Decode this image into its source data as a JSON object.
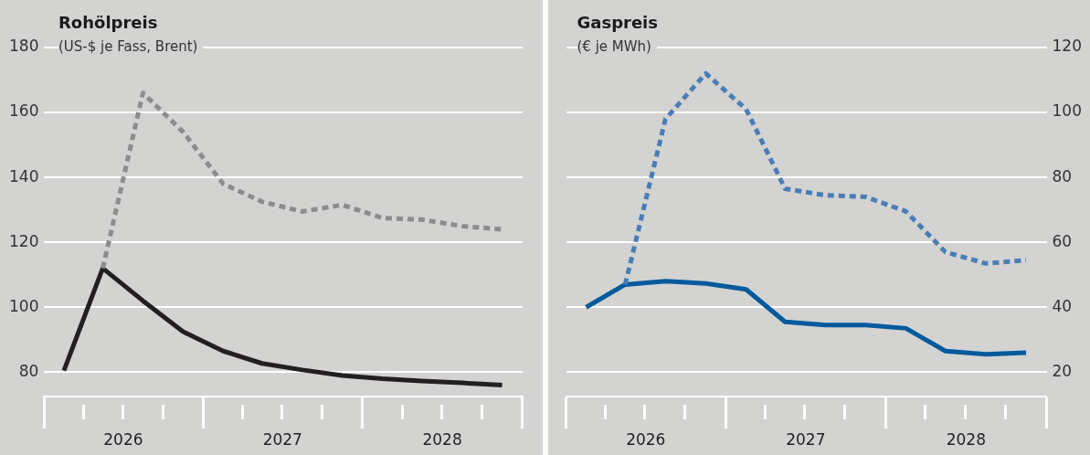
{
  "chart_data": [
    {
      "type": "line",
      "title": "Rohölpreis",
      "subtitle": "(US-$ je Fass, Brent)",
      "grid": "y",
      "x": [
        "2026-02-15",
        "2026-05-15",
        "2026-08-15",
        "2026-11-15",
        "2027-02-15",
        "2027-05-15",
        "2027-08-15",
        "2027-11-15",
        "2028-02-15",
        "2028-05-15",
        "2028-08-15",
        "2028-11-15"
      ],
      "xlim": [
        "2026-01-01",
        "2029-01-01"
      ],
      "xticks": [
        {
          "value": "2026-07-01",
          "label": "2026"
        },
        {
          "value": "2027-07-01",
          "label": "2027"
        },
        {
          "value": "2028-07-01",
          "label": "2028"
        }
      ],
      "ylim": [
        72.5,
        180
      ],
      "yticks": [
        80,
        100,
        120,
        140,
        160,
        180
      ],
      "series": [
        {
          "color": "#8c8c8c",
          "line_style": "dashed",
          "values": [
            null,
            112,
            166,
            154,
            138,
            132.5,
            129.5,
            131.5,
            127.5,
            127,
            125,
            124
          ]
        },
        {
          "color": "#231f20",
          "line_style": "solid",
          "values": [
            80.5,
            112,
            102,
            92.5,
            86.5,
            82.7,
            80.7,
            79,
            78,
            77.3,
            76.7,
            76
          ]
        }
      ]
    },
    {
      "type": "line",
      "title": "Gaspreis",
      "subtitle": "(€ je MWh)",
      "grid": "y",
      "x": [
        "2026-02-15",
        "2026-05-15",
        "2026-08-15",
        "2026-11-15",
        "2027-02-15",
        "2027-05-15",
        "2027-08-15",
        "2027-11-15",
        "2028-02-15",
        "2028-05-15",
        "2028-08-15",
        "2028-11-15"
      ],
      "xlim": [
        "2026-01-01",
        "2029-01-01"
      ],
      "xticks": [
        {
          "value": "2026-07-01",
          "label": "2026"
        },
        {
          "value": "2027-07-01",
          "label": "2027"
        },
        {
          "value": "2028-07-01",
          "label": "2028"
        }
      ],
      "y2lim": [
        12.5,
        120
      ],
      "y2ticks": [
        20,
        40,
        60,
        80,
        100,
        120
      ],
      "series": [
        {
          "color": "#4a7db5",
          "line_style": "dashed",
          "axis": "y2",
          "values": [
            null,
            47,
            98,
            112,
            101,
            76.5,
            74.5,
            74,
            69.5,
            57,
            53.5,
            54.5
          ]
        },
        {
          "color": "#005a9c",
          "line_style": "solid",
          "axis": "y2",
          "values": [
            40,
            47,
            48,
            47.3,
            45.5,
            35.5,
            34.5,
            34.5,
            33.5,
            26.5,
            25.5,
            26
          ]
        }
      ]
    }
  ]
}
